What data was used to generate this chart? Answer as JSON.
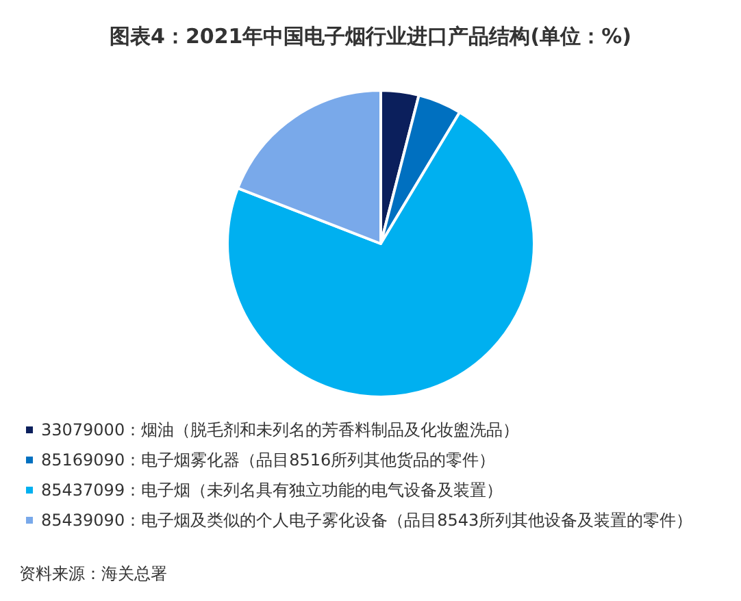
{
  "chart_data": {
    "type": "pie",
    "title": "图表4：2021年中国电子烟行业进口产品结构(单位：%)",
    "categories": [
      "33079000：烟油（脱毛剂和未列名的芳香料制品及化妆盥洗品）",
      "85169090：电子烟雾化器（品目8516所列其他货品的零件）",
      "85437099：电子烟（未列名具有独立功能的电气设备及装置）",
      "85439090：电子烟及类似的个人电子雾化设备（品目8543所列其他设备及装置的零件）"
    ],
    "values": [
      4.0,
      4.6,
      72.3,
      19.1
    ],
    "colors": [
      "#0b1f5c",
      "#0070c0",
      "#00b0f0",
      "#79a9ea"
    ],
    "legend": "bottom left",
    "annotations": [
      "资料来源：海关总署"
    ]
  }
}
